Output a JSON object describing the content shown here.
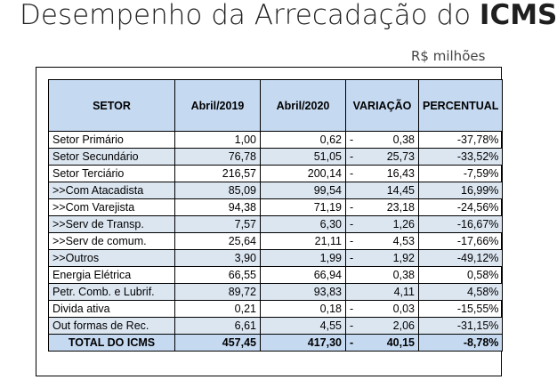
{
  "title": {
    "prefix": "Desempenho da Arrecadação do ",
    "bold": "ICMS"
  },
  "unit": "R$ milhões",
  "table": {
    "headers": [
      "SETOR",
      "Abril/2019",
      "Abril/2020",
      "VARIAÇÃO",
      "PERCENTUAL"
    ],
    "rows": [
      {
        "setor": "Setor Primário",
        "a2019": "1,00",
        "a2020": "0,62",
        "sign": "-",
        "variacao": "0,38",
        "percentual": "-37,78%"
      },
      {
        "setor": "Setor Secundário",
        "a2019": "76,78",
        "a2020": "51,05",
        "sign": "-",
        "variacao": "25,73",
        "percentual": "-33,52%"
      },
      {
        "setor": "Setor Terciário",
        "a2019": "216,57",
        "a2020": "200,14",
        "sign": "-",
        "variacao": "16,43",
        "percentual": "-7,59%"
      },
      {
        "setor": ">>Com Atacadista",
        "a2019": "85,09",
        "a2020": "99,54",
        "sign": "",
        "variacao": "14,45",
        "percentual": "16,99%"
      },
      {
        "setor": ">>Com Varejista",
        "a2019": "94,38",
        "a2020": "71,19",
        "sign": "-",
        "variacao": "23,18",
        "percentual": "-24,56%"
      },
      {
        "setor": ">>Serv de Transp.",
        "a2019": "7,57",
        "a2020": "6,30",
        "sign": "-",
        "variacao": "1,26",
        "percentual": "-16,67%"
      },
      {
        "setor": ">>Serv de comum.",
        "a2019": "25,64",
        "a2020": "21,11",
        "sign": "-",
        "variacao": "4,53",
        "percentual": "-17,66%"
      },
      {
        "setor": ">>Outros",
        "a2019": "3,90",
        "a2020": "1,99",
        "sign": "-",
        "variacao": "1,92",
        "percentual": "-49,12%"
      },
      {
        "setor": "Energia Elétrica",
        "a2019": "66,55",
        "a2020": "66,94",
        "sign": "",
        "variacao": "0,38",
        "percentual": "0,58%"
      },
      {
        "setor": "Petr. Comb. e Lubrif.",
        "a2019": "89,72",
        "a2020": "93,83",
        "sign": "",
        "variacao": "4,11",
        "percentual": "4,58%"
      },
      {
        "setor": "Divida ativa",
        "a2019": "0,21",
        "a2020": "0,18",
        "sign": "-",
        "variacao": "0,03",
        "percentual": "-15,55%"
      },
      {
        "setor": "Out formas de Rec.",
        "a2019": "6,61",
        "a2020": "4,55",
        "sign": "-",
        "variacao": "2,06",
        "percentual": "-31,15%"
      }
    ],
    "total": {
      "setor": "TOTAL DO ICMS",
      "a2019": "457,45",
      "a2020": "417,30",
      "sign": "-",
      "variacao": "40,15",
      "percentual": "-8,78%"
    }
  },
  "colors": {
    "header_bg": "#c5d9f1",
    "alt_row_bg": "#dce6f1"
  }
}
